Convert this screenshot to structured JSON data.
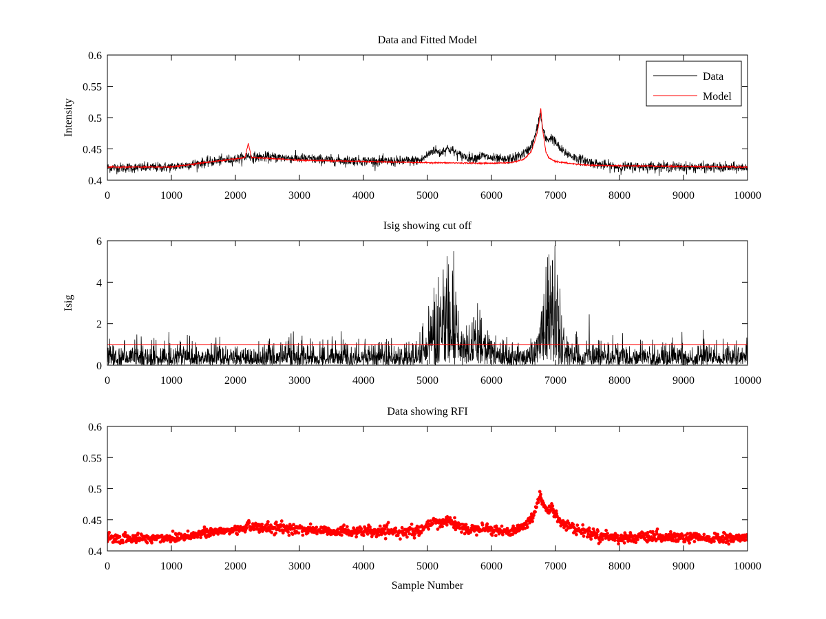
{
  "chart_data": [
    {
      "type": "line",
      "title": "Data and Fitted Model",
      "xlabel": "",
      "ylabel": "Intensity",
      "xlim": [
        0,
        10000
      ],
      "ylim": [
        0.4,
        0.6
      ],
      "xticks": [
        "0",
        "1000",
        "2000",
        "3000",
        "4000",
        "5000",
        "6000",
        "7000",
        "8000",
        "9000",
        "10000"
      ],
      "yticks": [
        "0.4",
        "0.45",
        "0.5",
        "0.55",
        "0.6"
      ],
      "legend": {
        "placement": "top-right",
        "entries": [
          "Data",
          "Model"
        ]
      },
      "grid": false,
      "series": [
        {
          "name": "Data",
          "color": "#000000",
          "noise": 0.004,
          "x": [
            0,
            500,
            1000,
            1500,
            2000,
            2150,
            2200,
            2250,
            2500,
            3000,
            3500,
            4000,
            4500,
            4900,
            5000,
            5100,
            5200,
            5300,
            5400,
            5500,
            5700,
            5850,
            6000,
            6200,
            6400,
            6550,
            6650,
            6720,
            6760,
            6800,
            6850,
            6900,
            6950,
            7000,
            7100,
            7300,
            7500,
            7700,
            8000,
            8500,
            9000,
            9500,
            10000
          ],
          "values": [
            0.42,
            0.42,
            0.421,
            0.428,
            0.434,
            0.436,
            0.44,
            0.437,
            0.437,
            0.435,
            0.432,
            0.431,
            0.43,
            0.432,
            0.44,
            0.449,
            0.443,
            0.451,
            0.447,
            0.44,
            0.435,
            0.439,
            0.435,
            0.432,
            0.437,
            0.445,
            0.46,
            0.485,
            0.508,
            0.482,
            0.465,
            0.466,
            0.468,
            0.46,
            0.447,
            0.436,
            0.43,
            0.425,
            0.421,
            0.422,
            0.421,
            0.42,
            0.42
          ]
        },
        {
          "name": "Model",
          "color": "#ff0000",
          "noise": 0.0005,
          "x": [
            0,
            1000,
            1500,
            2000,
            2150,
            2200,
            2250,
            2500,
            3000,
            4000,
            5000,
            6000,
            6300,
            6500,
            6620,
            6700,
            6740,
            6770,
            6800,
            6850,
            6900,
            7000,
            7200,
            7500,
            8000,
            9000,
            10000
          ],
          "values": [
            0.421,
            0.421,
            0.428,
            0.434,
            0.436,
            0.459,
            0.436,
            0.435,
            0.432,
            0.43,
            0.428,
            0.427,
            0.428,
            0.433,
            0.445,
            0.47,
            0.49,
            0.515,
            0.48,
            0.445,
            0.435,
            0.43,
            0.427,
            0.424,
            0.423,
            0.422,
            0.421
          ]
        }
      ]
    },
    {
      "type": "line",
      "title": "Isig showing cut off",
      "xlabel": "",
      "ylabel": "Isig",
      "xlim": [
        0,
        10000
      ],
      "ylim": [
        0,
        6
      ],
      "xticks": [
        "0",
        "1000",
        "2000",
        "3000",
        "4000",
        "5000",
        "6000",
        "7000",
        "8000",
        "9000",
        "10000"
      ],
      "yticks": [
        "0",
        "2",
        "4",
        "6"
      ],
      "grid": false,
      "series": [
        {
          "color": "#000000",
          "x": [
            0,
            4800,
            5000,
            5100,
            5200,
            5300,
            5400,
            5500,
            5600,
            5700,
            5850,
            6000,
            6200,
            6500,
            6700,
            6850,
            6950,
            7050,
            7150,
            7300,
            7600,
            10000
          ],
          "values": [
            0.6,
            0.6,
            1.2,
            2.8,
            2.2,
            3.2,
            2.8,
            1.6,
            0.9,
            1.2,
            1.6,
            0.8,
            0.6,
            0.6,
            0.8,
            3.0,
            3.9,
            2.2,
            0.9,
            0.6,
            0.6,
            0.6
          ]
        },
        {
          "color": "#ff0000",
          "x": [
            0,
            10000
          ],
          "values": [
            1,
            1
          ]
        }
      ]
    },
    {
      "type": "scatter",
      "title": "Data showing RFI",
      "xlabel": "Sample Number",
      "ylabel": "",
      "xlim": [
        0,
        10000
      ],
      "ylim": [
        0.4,
        0.6
      ],
      "xticks": [
        "0",
        "1000",
        "2000",
        "3000",
        "4000",
        "5000",
        "6000",
        "7000",
        "8000",
        "9000",
        "10000"
      ],
      "yticks": [
        "0.4",
        "0.45",
        "0.5",
        "0.55",
        "0.6"
      ],
      "grid": false,
      "series": [
        {
          "color": "#ff0000",
          "noise": 0.004,
          "x": [
            0,
            500,
            1000,
            1500,
            2000,
            2150,
            2200,
            2250,
            2500,
            3000,
            3500,
            4000,
            4500,
            4900,
            5000,
            5100,
            5200,
            5300,
            5400,
            5500,
            5700,
            5850,
            6000,
            6200,
            6400,
            6550,
            6650,
            6720,
            6760,
            6800,
            6850,
            6900,
            6950,
            7000,
            7100,
            7300,
            7500,
            7700,
            8000,
            8500,
            9000,
            9500,
            10000
          ],
          "values": [
            0.42,
            0.42,
            0.421,
            0.428,
            0.434,
            0.436,
            0.447,
            0.437,
            0.437,
            0.435,
            0.432,
            0.431,
            0.43,
            0.432,
            0.44,
            0.447,
            0.441,
            0.452,
            0.445,
            0.438,
            0.434,
            0.44,
            0.434,
            0.431,
            0.435,
            0.443,
            0.456,
            0.477,
            0.493,
            0.478,
            0.463,
            0.466,
            0.468,
            0.459,
            0.446,
            0.435,
            0.43,
            0.425,
            0.421,
            0.422,
            0.421,
            0.42,
            0.42
          ]
        }
      ]
    }
  ]
}
